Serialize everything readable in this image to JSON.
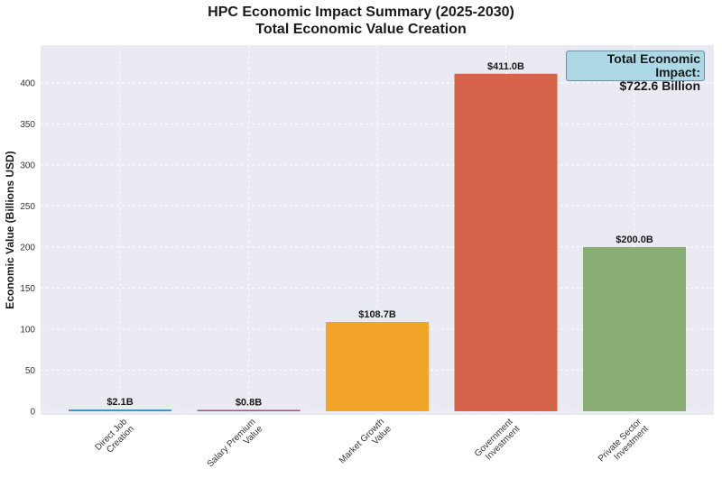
{
  "chart_data": {
    "type": "bar",
    "title": [
      "HPC Economic Impact Summary (2025-2030)",
      "Total Economic Value Creation"
    ],
    "ylabel": "Economic Value (Billions USD)",
    "xlabel": "",
    "ylim": [
      0,
      430
    ],
    "yticks": [
      0,
      50,
      100,
      150,
      200,
      250,
      300,
      350,
      400
    ],
    "grid": true,
    "categories": [
      [
        "Direct Job",
        "Creation"
      ],
      [
        "Salary Premium",
        "Value"
      ],
      [
        "Market Growth",
        "Value"
      ],
      [
        "Government",
        "Investment"
      ],
      [
        "Private Sector",
        "Investment"
      ]
    ],
    "values": [
      2.1,
      0.8,
      108.7,
      411.0,
      200.0
    ],
    "data_labels": [
      "$2.1B",
      "$0.8B",
      "$108.7B",
      "$411.0B",
      "$200.0B"
    ],
    "colors": [
      "#2e86c1",
      "#a23b72",
      "#f39c12",
      "#d35537",
      "#7da765"
    ],
    "annotation": {
      "line1": "Total Economic Impact:",
      "line2": "$722.6 Billion",
      "placement": "top-right",
      "background": "#add8e6"
    }
  }
}
